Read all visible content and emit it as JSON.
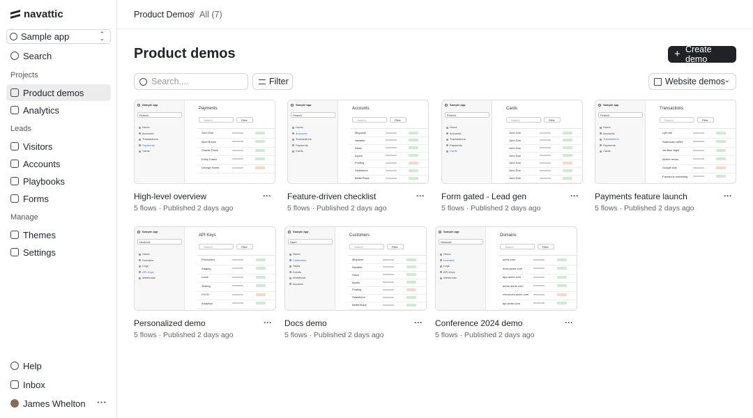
{
  "sidebar": {
    "brand": "navattic",
    "workspace": "Sample app",
    "search": "Search",
    "sections": [
      {
        "heading": "Projects",
        "items": [
          {
            "label": "Product demos",
            "active": true
          },
          {
            "label": "Analytics"
          }
        ]
      },
      {
        "heading": "Leads",
        "items": [
          {
            "label": "Visitors"
          },
          {
            "label": "Accounts"
          },
          {
            "label": "Playbooks"
          },
          {
            "label": "Forms"
          }
        ]
      },
      {
        "heading": "Manage",
        "items": [
          {
            "label": "Themes"
          },
          {
            "label": "Settings"
          }
        ]
      }
    ],
    "footer": [
      "Help",
      "Inbox"
    ],
    "user": "James Whelton"
  },
  "header": {
    "breadcrumb": [
      "Product Demos",
      "All (7)"
    ],
    "separator": "/"
  },
  "page": {
    "title": "Product demos",
    "create_button": "Create demo",
    "search_placeholder": "Search....",
    "filter": "Filter",
    "view": "Website demos"
  },
  "demos": [
    {
      "title": "High-level overview",
      "meta": "5 flows · Published 2 days ago",
      "thumb": {
        "app": "Sample app",
        "workspace": "Fintech",
        "heading": "Payments",
        "search": "Search",
        "filter": "Filter",
        "nav": [
          "Home",
          "Accounts",
          "Transactions",
          "Payments",
          "Cards"
        ],
        "rows": [
          "John Doe",
          "Alice Brown",
          "Charlie Davis",
          "Emily Foster",
          "George Harris"
        ]
      }
    },
    {
      "title": "Feature-driven checklist",
      "meta": "5 flows · Published 2 days ago",
      "thumb": {
        "app": "Sample app",
        "workspace": "Fintech",
        "heading": "Accounts",
        "search": "Search",
        "filter": "Filter",
        "nav": [
          "Home",
          "Accounts",
          "Transactions",
          "Payments",
          "Cards"
        ],
        "rows": [
          "Mixpanel",
          "Navattic",
          "Slack",
          "Apollo",
          "Postlog",
          "Salesforce",
          "BetterStack"
        ]
      }
    },
    {
      "title": "Form gated - Lead gen",
      "meta": "5 flows · Published 2 days ago",
      "thumb": {
        "app": "Sample app",
        "workspace": "Fintech",
        "heading": "Cards",
        "search": "Search",
        "filter": "Filter",
        "nav": [
          "Home",
          "Accounts",
          "Transactions",
          "Payments",
          "Cards"
        ],
        "rows": [
          "John Doe",
          "John Doe",
          "John Doe",
          "John Doe",
          "John Doe",
          "John Doe",
          "John Doe"
        ]
      }
    },
    {
      "title": "Payments feature launch",
      "meta": "5 flows · Published 2 days ago",
      "thumb": {
        "app": "Sample app",
        "workspace": "Fintech",
        "heading": "Transactions",
        "search": "Search",
        "filter": "Filter",
        "nav": [
          "Home",
          "Accounts",
          "Transactions",
          "Payments",
          "Cards"
        ],
        "rows": [
          "Lyft ride",
          "Starbucks coffee",
          "Jet Blue flight",
          "Airbnb rental",
          "Google Ads",
          "Facebook marketing"
        ]
      }
    },
    {
      "title": "Personalized demo",
      "meta": "5 flows · Published 2 days ago",
      "thumb": {
        "app": "Sample app",
        "workspace": "Devtools",
        "heading": "API Keys",
        "search": "Search",
        "filter": "Filter",
        "nav": [
          "Home",
          "Domains",
          "Logs",
          "API Keys",
          "Webhooks"
        ],
        "rows": [
          "Production",
          "Staging",
          "Local",
          "Testing",
          "CI/CD",
          "Analytics"
        ]
      }
    },
    {
      "title": "Docs demo",
      "meta": "5 flows · Published 2 days ago",
      "thumb": {
        "app": "Sample app",
        "workspace": "SaaS",
        "heading": "Customers",
        "search": "Search",
        "filter": "Filter",
        "nav": [
          "Home",
          "Customers",
          "Tasks",
          "Events",
          "Workflows",
          "Invoices"
        ],
        "rows": [
          "Mixpanel",
          "Navattic",
          "Slack",
          "Apollo",
          "Postlog",
          "Salesforce",
          "BetterStack"
        ]
      }
    },
    {
      "title": "Conference 2024 demo",
      "meta": "5 flows · Published 2 days ago",
      "thumb": {
        "app": "Sample app",
        "workspace": "Devtools",
        "heading": "Domains",
        "search": "Search",
        "filter": "Filter",
        "nav": [
          "Home",
          "Domains",
          "Logs",
          "API Keys",
          "Webhooks"
        ],
        "rows": [
          "acme.com",
          "docs.acme.com",
          "app.acme.com",
          "demo.acme.com",
          "resources.acme.com",
          "api.acme.com"
        ]
      }
    }
  ]
}
